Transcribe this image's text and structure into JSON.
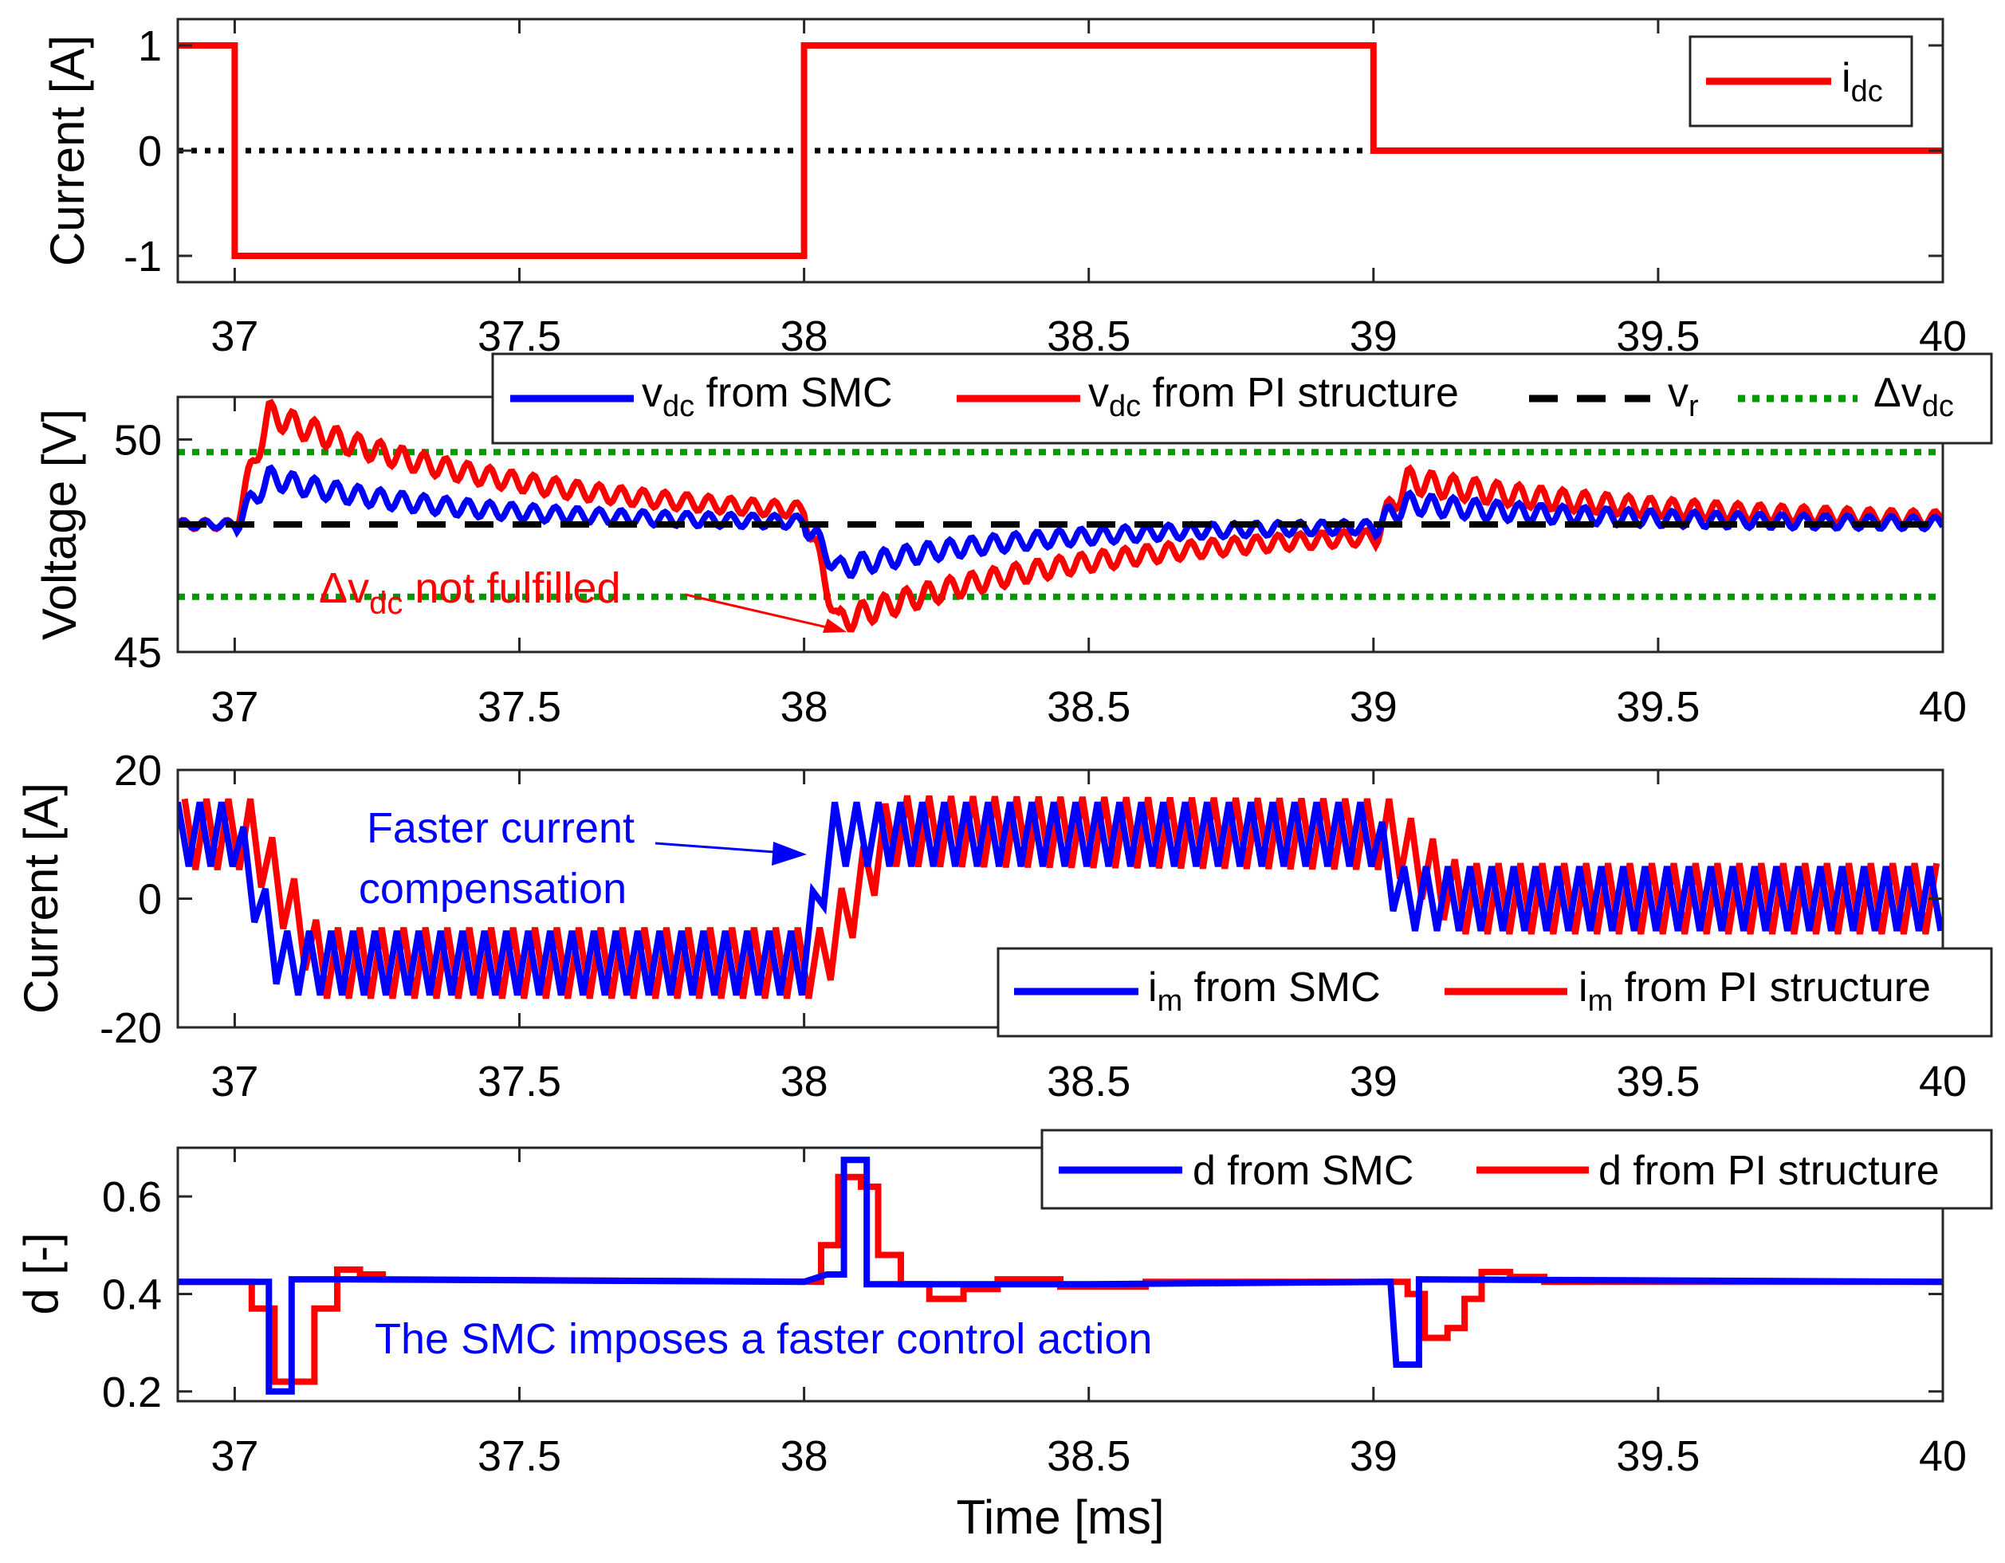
{
  "xlabel": "Time [ms]",
  "xticks": [
    37,
    37.5,
    38,
    38.5,
    39,
    39.5,
    40
  ],
  "xrange": [
    36.9,
    40
  ],
  "colors": {
    "blue": "#0000ff",
    "red": "#ff0000",
    "green": "#009900",
    "black": "#000000"
  },
  "chart_data": [
    {
      "type": "line",
      "id": "idc",
      "ylabel": "Current [A]",
      "ylim": [
        -1.25,
        1.25
      ],
      "yticks": [
        -1,
        0,
        1
      ],
      "legend": {
        "entries": [
          {
            "main": "i",
            "sub": "dc",
            "rest": ""
          }
        ]
      },
      "series": [
        {
          "name": "idc",
          "points": [
            [
              36.9,
              1
            ],
            [
              37,
              1
            ],
            [
              37,
              -1
            ],
            [
              38,
              -1
            ],
            [
              38,
              1
            ],
            [
              39,
              1
            ],
            [
              39,
              0
            ],
            [
              40,
              0
            ]
          ]
        },
        {
          "name": "zero",
          "points": [
            [
              36.9,
              0
            ],
            [
              40,
              0
            ]
          ]
        }
      ]
    },
    {
      "type": "line",
      "id": "vdc",
      "ylabel": "Voltage [V]",
      "ylim": [
        45,
        51
      ],
      "yticks": [
        45,
        50
      ],
      "vr": 48,
      "band_upper": 49.7,
      "band_lower": 46.3,
      "legend": {
        "entries": [
          {
            "main": "v",
            "sub": "dc",
            "rest": " from SMC"
          },
          {
            "main": "v",
            "sub": "dc",
            "rest": " from PI structure"
          },
          {
            "main": "v",
            "sub": "r",
            "rest": ""
          },
          {
            "main": "Δv",
            "sub": "dc",
            "rest": ""
          }
        ]
      },
      "smc": {
        "base": 48,
        "ripple": 0.25,
        "events": [
          {
            "t": 37,
            "peak": 1.1,
            "tau": 0.33
          },
          {
            "t": 38,
            "peak": -1.1,
            "tau": 0.33
          },
          {
            "t": 39,
            "peak": 0.55,
            "tau": 0.35
          }
        ]
      },
      "pi": {
        "base": 48,
        "ripple": 0.3,
        "events": [
          {
            "t": 37,
            "peak": 2.6,
            "tau": 0.46
          },
          {
            "t": 38,
            "peak": -2.6,
            "tau": 0.46
          },
          {
            "t": 39,
            "peak": 1.3,
            "tau": 0.46
          }
        ]
      },
      "annotation": {
        "main": "Δv",
        "sub": "dc",
        "rest": " not fulfilled"
      }
    },
    {
      "type": "line",
      "id": "im",
      "ylabel": "Current [A]",
      "ylim": [
        -20,
        20
      ],
      "yticks": [
        -20,
        0,
        20
      ],
      "legend": {
        "entries": [
          {
            "main": "i",
            "sub": "m",
            "rest": " from SMC"
          },
          {
            "main": "i",
            "sub": "m",
            "rest": " from PI structure"
          }
        ]
      },
      "smc": {
        "levels": [
          [
            36.9,
            10
          ],
          [
            37,
            10
          ],
          [
            37.08,
            -10
          ],
          [
            38,
            -10
          ],
          [
            38.05,
            10
          ],
          [
            39,
            10
          ],
          [
            39.05,
            0
          ],
          [
            40,
            0
          ]
        ],
        "ripple": 5,
        "freq": 26
      },
      "pi": {
        "levels": [
          [
            36.9,
            10
          ],
          [
            37.03,
            10
          ],
          [
            37.15,
            -10
          ],
          [
            38.03,
            -10
          ],
          [
            38.15,
            10.5
          ],
          [
            39.03,
            10
          ],
          [
            39.15,
            0
          ],
          [
            40,
            0
          ]
        ],
        "ripple": 5.5,
        "freq": 26
      },
      "annotation": {
        "line1": "Faster current",
        "line2": "compensation"
      }
    },
    {
      "type": "line",
      "id": "d",
      "ylabel": "d [-]",
      "ylim": [
        0.18,
        0.7
      ],
      "yticks": [
        0.2,
        0.4,
        0.6
      ],
      "legend": {
        "entries": [
          {
            "main": "d from SMC",
            "sub": "",
            "rest": ""
          },
          {
            "main": "d from PI structure",
            "sub": "",
            "rest": ""
          }
        ]
      },
      "smc": [
        [
          36.9,
          0.425
        ],
        [
          37.06,
          0.425
        ],
        [
          37.06,
          0.2
        ],
        [
          37.1,
          0.2
        ],
        [
          37.1,
          0.43
        ],
        [
          37.2,
          0.43
        ],
        [
          38,
          0.425
        ],
        [
          38.04,
          0.44
        ],
        [
          38.07,
          0.44
        ],
        [
          38.07,
          0.675
        ],
        [
          38.11,
          0.675
        ],
        [
          38.11,
          0.42
        ],
        [
          38.5,
          0.42
        ],
        [
          39.03,
          0.425
        ],
        [
          39.04,
          0.255
        ],
        [
          39.08,
          0.255
        ],
        [
          39.08,
          0.43
        ],
        [
          40,
          0.425
        ]
      ],
      "pi": [
        [
          36.9,
          0.425
        ],
        [
          37.03,
          0.425
        ],
        [
          37.03,
          0.37
        ],
        [
          37.07,
          0.37
        ],
        [
          37.07,
          0.22
        ],
        [
          37.14,
          0.22
        ],
        [
          37.14,
          0.37
        ],
        [
          37.18,
          0.37
        ],
        [
          37.18,
          0.45
        ],
        [
          37.22,
          0.45
        ],
        [
          37.22,
          0.44
        ],
        [
          37.26,
          0.44
        ],
        [
          37.26,
          0.43
        ],
        [
          38.03,
          0.425
        ],
        [
          38.03,
          0.5
        ],
        [
          38.06,
          0.5
        ],
        [
          38.06,
          0.64
        ],
        [
          38.1,
          0.64
        ],
        [
          38.1,
          0.62
        ],
        [
          38.13,
          0.62
        ],
        [
          38.13,
          0.48
        ],
        [
          38.17,
          0.48
        ],
        [
          38.17,
          0.42
        ],
        [
          38.22,
          0.42
        ],
        [
          38.22,
          0.39
        ],
        [
          38.28,
          0.39
        ],
        [
          38.28,
          0.41
        ],
        [
          38.34,
          0.41
        ],
        [
          38.34,
          0.43
        ],
        [
          38.45,
          0.43
        ],
        [
          38.45,
          0.415
        ],
        [
          38.6,
          0.415
        ],
        [
          38.6,
          0.425
        ],
        [
          39.06,
          0.425
        ],
        [
          39.06,
          0.4
        ],
        [
          39.09,
          0.4
        ],
        [
          39.09,
          0.31
        ],
        [
          39.13,
          0.31
        ],
        [
          39.13,
          0.33
        ],
        [
          39.16,
          0.33
        ],
        [
          39.16,
          0.39
        ],
        [
          39.19,
          0.39
        ],
        [
          39.19,
          0.445
        ],
        [
          39.24,
          0.445
        ],
        [
          39.24,
          0.435
        ],
        [
          39.3,
          0.435
        ],
        [
          39.3,
          0.425
        ],
        [
          40,
          0.425
        ]
      ],
      "annotation": "The SMC imposes a faster control action"
    }
  ]
}
